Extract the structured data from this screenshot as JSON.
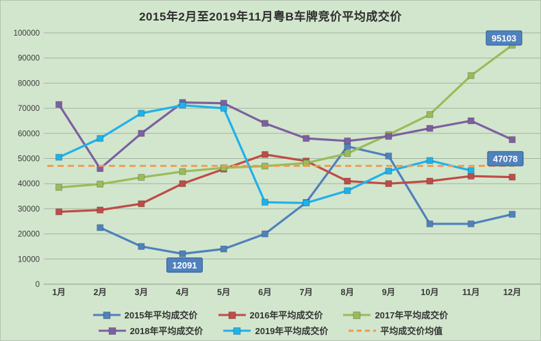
{
  "chart_data": {
    "type": "line",
    "title": "2015年2月至2019年11月粤B车牌竞价平均成交价",
    "categories": [
      "1月",
      "2月",
      "3月",
      "4月",
      "5月",
      "6月",
      "7月",
      "8月",
      "9月",
      "10月",
      "11月",
      "12月"
    ],
    "series": [
      {
        "name": "2015年平均成交价",
        "color": "#4f81bd",
        "values": [
          null,
          22500,
          15000,
          12091,
          14000,
          20000,
          32500,
          54800,
          51000,
          24000,
          24000,
          27800
        ]
      },
      {
        "name": "2016年平均成交价",
        "color": "#bf4c48",
        "values": [
          28800,
          29500,
          32000,
          40000,
          45800,
          51600,
          49000,
          41000,
          40000,
          41000,
          43000,
          42600
        ]
      },
      {
        "name": "2017年平均成交价",
        "color": "#9bbb59",
        "values": [
          38500,
          39800,
          42500,
          44800,
          46300,
          47000,
          48200,
          52000,
          59500,
          67500,
          83000,
          95103
        ]
      },
      {
        "name": "2018年平均成交价",
        "color": "#7d60a0",
        "values": [
          71500,
          46000,
          60000,
          72300,
          72000,
          64000,
          58000,
          57000,
          58800,
          62000,
          65000,
          57500
        ]
      },
      {
        "name": "2019年平均成交价",
        "color": "#1fb1ec",
        "values": [
          50500,
          58000,
          68000,
          71200,
          70000,
          32600,
          32300,
          37200,
          45000,
          49200,
          45200,
          null
        ]
      },
      {
        "name": "平均成交价均值",
        "color": "#f79646",
        "dashed": true,
        "constant": 47078
      }
    ],
    "annotations": [
      {
        "text": "12091",
        "series": "2015年平均成交价",
        "category": "4月",
        "placement": "below",
        "dx": 3
      },
      {
        "text": "95103",
        "series": "2017年平均成交价",
        "category": "12月",
        "placement": "above",
        "dx": -12
      },
      {
        "text": "47078",
        "series": "平均成交价均值",
        "category": "12月",
        "placement": "above",
        "dx": -10
      }
    ],
    "annotation_style": {
      "bg": "#4f81bd",
      "border": "#2e5a96",
      "text_color": "#ffffff"
    },
    "xlabel": "",
    "ylabel": "",
    "ylim": [
      0,
      100000
    ],
    "y_ticks": [
      0,
      10000,
      20000,
      30000,
      40000,
      50000,
      60000,
      70000,
      80000,
      90000,
      100000
    ],
    "grid": true,
    "grid_color": "#a3b2a0",
    "background_color": "#d2e6cd",
    "legend_position": "bottom",
    "legend_rows": [
      [
        0,
        1,
        2
      ],
      [
        3,
        4,
        5
      ]
    ]
  }
}
